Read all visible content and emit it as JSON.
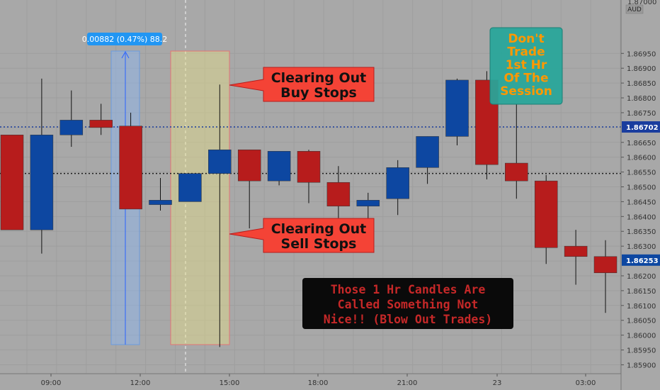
{
  "chart_data": {
    "type": "candlestick",
    "currency_label": "AUD",
    "x_labels": [
      "09:00",
      "12:00",
      "15:00",
      "18:00",
      "21:00",
      "23",
      "03:00"
    ],
    "y_ticks": [
      "1.86950",
      "1.86900",
      "1.86850",
      "1.86800",
      "1.86750",
      "1.86650",
      "1.86600",
      "1.86550",
      "1.86500",
      "1.86450",
      "1.86400",
      "1.86350",
      "1.86300",
      "1.86200",
      "1.86150",
      "1.86100",
      "1.86050",
      "1.86000",
      "1.85950",
      "1.85900"
    ],
    "ylim": [
      1.8587,
      1.8713
    ],
    "y_top_label": "1.87000",
    "current_price": "1.86253",
    "marked_level": "1.86702",
    "reference_level": 1.86545,
    "candles": [
      {
        "x": 1,
        "o": 1.86675,
        "h": 1.86675,
        "l": 1.86355,
        "c": 1.86355
      },
      {
        "x": 2,
        "o": 1.86355,
        "h": 1.86865,
        "l": 1.86275,
        "c": 1.86675
      },
      {
        "x": 3,
        "o": 1.86675,
        "h": 1.86825,
        "l": 1.86635,
        "c": 1.86725
      },
      {
        "x": 4,
        "o": 1.86725,
        "h": 1.8678,
        "l": 1.86675,
        "c": 1.867
      },
      {
        "x": 5,
        "o": 1.86705,
        "h": 1.8675,
        "l": 1.86425,
        "c": 1.86425
      },
      {
        "x": 6,
        "o": 1.8644,
        "h": 1.8653,
        "l": 1.8642,
        "c": 1.86455
      },
      {
        "x": 7,
        "o": 1.8645,
        "h": 1.86545,
        "l": 1.8645,
        "c": 1.86545
      },
      {
        "x": 8,
        "o": 1.86545,
        "h": 1.86845,
        "l": 1.8596,
        "c": 1.86625
      },
      {
        "x": 9,
        "o": 1.86625,
        "h": 1.86625,
        "l": 1.8636,
        "c": 1.8652
      },
      {
        "x": 10,
        "o": 1.8652,
        "h": 1.8662,
        "l": 1.86505,
        "c": 1.8662
      },
      {
        "x": 11,
        "o": 1.8662,
        "h": 1.86625,
        "l": 1.86445,
        "c": 1.86515
      },
      {
        "x": 12,
        "o": 1.86515,
        "h": 1.8657,
        "l": 1.86395,
        "c": 1.86435
      },
      {
        "x": 13,
        "o": 1.86435,
        "h": 1.8648,
        "l": 1.86365,
        "c": 1.86455
      },
      {
        "x": 14,
        "o": 1.8646,
        "h": 1.8659,
        "l": 1.86405,
        "c": 1.86565
      },
      {
        "x": 15,
        "o": 1.86565,
        "h": 1.8667,
        "l": 1.8651,
        "c": 1.8667
      },
      {
        "x": 16,
        "o": 1.8667,
        "h": 1.86865,
        "l": 1.8664,
        "c": 1.8686
      },
      {
        "x": 17,
        "o": 1.8686,
        "h": 1.8689,
        "l": 1.86525,
        "c": 1.86575
      },
      {
        "x": 18,
        "o": 1.8658,
        "h": 1.8678,
        "l": 1.8646,
        "c": 1.8652
      },
      {
        "x": 19,
        "o": 1.8652,
        "h": 1.8654,
        "l": 1.8624,
        "c": 1.86295
      },
      {
        "x": 20,
        "o": 1.863,
        "h": 1.86355,
        "l": 1.8617,
        "c": 1.86265
      },
      {
        "x": 21,
        "o": 1.86265,
        "h": 1.8632,
        "l": 1.86075,
        "c": 1.8621
      },
      {
        "x": 22,
        "o": 1.8621,
        "h": 1.8631,
        "l": 1.86145,
        "c": 1.86253
      }
    ],
    "measure_label": "0.00882 (0.47%) 88.2",
    "annotations": {
      "buy_stops": [
        "Clearing Out",
        "Buy Stops"
      ],
      "sell_stops": [
        "Clearing Out",
        "Sell Stops"
      ],
      "dont_trade": [
        "Don't",
        "Trade",
        "1st Hr",
        "Of The",
        "Session"
      ],
      "blow_out": [
        "Those 1 Hr Candles Are",
        "Called Something Not",
        "Nice!! (Blow Out Trades)"
      ]
    },
    "colors": {
      "background": "#a8a8a8",
      "bull": "#0d47a1",
      "bear": "#b71c1c",
      "callout": "#f44336",
      "teal_box": "#26a69a",
      "teal_text": "#ff9800",
      "dark_box": "#0a0a0a",
      "dark_text": "#c62828"
    }
  }
}
